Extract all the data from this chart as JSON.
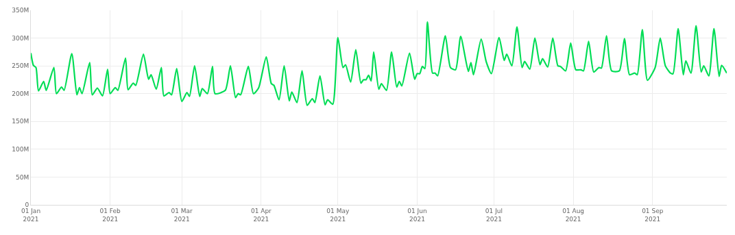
{
  "chart_data": {
    "type": "line",
    "grid": true,
    "marker": "none",
    "line_style": "solid",
    "xlim": [
      "2021-01-01",
      "2021-09-30"
    ],
    "xticks": [
      {
        "value": "2021-01-01",
        "label": "01 Jan\n2021"
      },
      {
        "value": "2021-02-01",
        "label": "01 Feb\n2021"
      },
      {
        "value": "2021-03-01",
        "label": "01 Mar\n2021"
      },
      {
        "value": "2021-04-01",
        "label": "01 Apr\n2021"
      },
      {
        "value": "2021-05-01",
        "label": "01 May\n2021"
      },
      {
        "value": "2021-06-01",
        "label": "01 Jun\n2021"
      },
      {
        "value": "2021-07-01",
        "label": "01 Jul\n2021"
      },
      {
        "value": "2021-08-01",
        "label": "01 Aug\n2021"
      },
      {
        "value": "2021-09-01",
        "label": "01 Sep\n2021"
      }
    ],
    "ylim": [
      0,
      350
    ],
    "yticks": [
      0,
      {
        "value": 50,
        "label": "50M"
      },
      {
        "value": 100,
        "label": "100M"
      },
      {
        "value": 150,
        "label": "150M"
      },
      {
        "value": 200,
        "label": "200M"
      },
      {
        "value": 250,
        "label": "250M"
      },
      {
        "value": 300,
        "label": "300M"
      },
      {
        "value": 350,
        "label": "350M"
      }
    ],
    "x": [
      "2021-01-01",
      "2021-01-02",
      "2021-01-03",
      "2021-01-04",
      "2021-01-06",
      "2021-01-07",
      "2021-01-10",
      "2021-01-11",
      "2021-01-13",
      "2021-01-14",
      "2021-01-17",
      "2021-01-19",
      "2021-01-20",
      "2021-01-21",
      "2021-01-24",
      "2021-01-25",
      "2021-01-27",
      "2021-01-29",
      "2021-01-31",
      "2021-02-01",
      "2021-02-03",
      "2021-02-04",
      "2021-02-07",
      "2021-02-08",
      "2021-02-10",
      "2021-02-11",
      "2021-02-14",
      "2021-02-16",
      "2021-02-17",
      "2021-02-19",
      "2021-02-21",
      "2021-02-22",
      "2021-02-24",
      "2021-02-25",
      "2021-02-27",
      "2021-03-01",
      "2021-03-03",
      "2021-03-04",
      "2021-03-06",
      "2021-03-08",
      "2021-03-09",
      "2021-03-11",
      "2021-03-13",
      "2021-03-14",
      "2021-03-18",
      "2021-03-20",
      "2021-03-22",
      "2021-03-23",
      "2021-03-24",
      "2021-03-27",
      "2021-03-29",
      "2021-03-31",
      "2021-04-03",
      "2021-04-05",
      "2021-04-06",
      "2021-04-08",
      "2021-04-10",
      "2021-04-12",
      "2021-04-13",
      "2021-04-15",
      "2021-04-17",
      "2021-04-19",
      "2021-04-21",
      "2021-04-22",
      "2021-04-24",
      "2021-04-26",
      "2021-04-27",
      "2021-04-29",
      "2021-05-01",
      "2021-05-03",
      "2021-05-04",
      "2021-05-06",
      "2021-05-08",
      "2021-05-10",
      "2021-05-11",
      "2021-05-12",
      "2021-05-13",
      "2021-05-14",
      "2021-05-15",
      "2021-05-17",
      "2021-05-18",
      "2021-05-20",
      "2021-05-22",
      "2021-05-24",
      "2021-05-25",
      "2021-05-26",
      "2021-05-29",
      "2021-05-31",
      "2021-06-01",
      "2021-06-02",
      "2021-06-03",
      "2021-06-04",
      "2021-06-05",
      "2021-06-07",
      "2021-06-08",
      "2021-06-09",
      "2021-06-12",
      "2021-06-14",
      "2021-06-16",
      "2021-06-18",
      "2021-06-21",
      "2021-06-22",
      "2021-06-23",
      "2021-06-26",
      "2021-06-28",
      "2021-06-30",
      "2021-07-03",
      "2021-07-05",
      "2021-07-06",
      "2021-07-08",
      "2021-07-10",
      "2021-07-12",
      "2021-07-13",
      "2021-07-15",
      "2021-07-17",
      "2021-07-19",
      "2021-07-20",
      "2021-07-22",
      "2021-07-24",
      "2021-07-26",
      "2021-07-27",
      "2021-07-29",
      "2021-07-31",
      "2021-08-02",
      "2021-08-04",
      "2021-08-05",
      "2021-08-07",
      "2021-08-09",
      "2021-08-11",
      "2021-08-12",
      "2021-08-14",
      "2021-08-16",
      "2021-08-19",
      "2021-08-21",
      "2021-08-23",
      "2021-08-25",
      "2021-08-26",
      "2021-08-28",
      "2021-08-30",
      "2021-09-02",
      "2021-09-04",
      "2021-09-06",
      "2021-09-08",
      "2021-09-09",
      "2021-09-11",
      "2021-09-13",
      "2021-09-14",
      "2021-09-16",
      "2021-09-18",
      "2021-09-20",
      "2021-09-21",
      "2021-09-23",
      "2021-09-25",
      "2021-09-27",
      "2021-09-28",
      "2021-09-30"
    ],
    "series": [
      {
        "color": "#00dd55",
        "values": [
          273,
          251,
          247,
          205,
          222,
          206,
          247,
          200,
          212,
          206,
          272,
          198,
          211,
          200,
          256,
          198,
          210,
          196,
          244,
          200,
          211,
          206,
          264,
          207,
          219,
          215,
          271,
          226,
          234,
          208,
          247,
          196,
          202,
          198,
          245,
          186,
          202,
          195,
          250,
          195,
          209,
          200,
          249,
          200,
          206,
          250,
          193,
          200,
          198,
          249,
          200,
          210,
          266,
          218,
          215,
          189,
          250,
          187,
          203,
          184,
          241,
          179,
          191,
          184,
          232,
          180,
          189,
          181,
          301,
          247,
          252,
          221,
          279,
          219,
          225,
          225,
          233,
          223,
          275,
          208,
          218,
          206,
          275,
          212,
          222,
          214,
          273,
          226,
          236,
          236,
          249,
          245,
          329,
          237,
          237,
          232,
          304,
          247,
          243,
          303,
          240,
          256,
          234,
          298,
          257,
          236,
          301,
          260,
          271,
          250,
          320,
          247,
          258,
          244,
          300,
          252,
          263,
          248,
          300,
          250,
          249,
          241,
          291,
          243,
          243,
          241,
          294,
          239,
          247,
          246,
          304,
          241,
          241,
          299,
          234,
          237,
          234,
          315,
          224,
          247,
          300,
          250,
          237,
          236,
          317,
          234,
          259,
          237,
          322,
          239,
          250,
          232,
          317,
          231,
          251,
          237
        ]
      }
    ]
  }
}
